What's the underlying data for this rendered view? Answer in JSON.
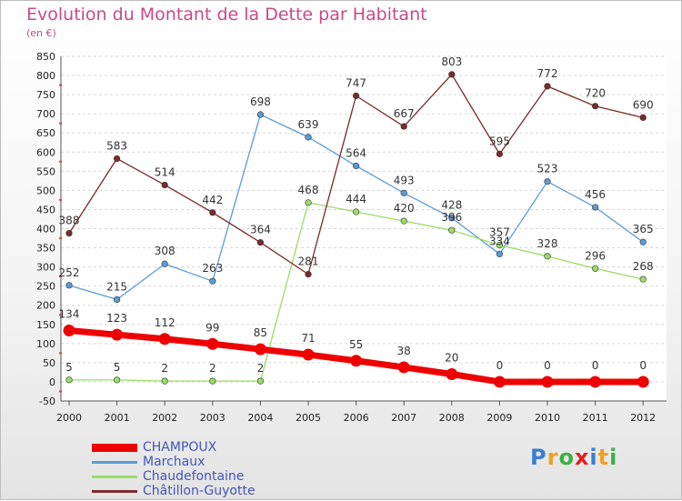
{
  "title": "Evolution du Montant de la Dette par Habitant",
  "subtitle": "(en €)",
  "logo": {
    "letters": [
      "P",
      "r",
      "o",
      "x",
      "i",
      "t",
      "i"
    ],
    "colors": [
      "#3a7fd0",
      "#f0a020",
      "#3cb043",
      "#e02020",
      "#3a7fd0",
      "#f0a020",
      "#3cb043"
    ]
  },
  "chart_data": {
    "type": "line",
    "title": "Evolution du Montant de la Dette par Habitant",
    "ylabel": "(en €)",
    "x": [
      "2000",
      "2001",
      "2002",
      "2003",
      "2004",
      "2005",
      "2006",
      "2007",
      "2008",
      "2009",
      "2010",
      "2011",
      "2012"
    ],
    "ylim": [
      -50,
      850
    ],
    "yticks": [
      -50,
      0,
      50,
      100,
      150,
      200,
      250,
      300,
      350,
      400,
      450,
      500,
      550,
      600,
      650,
      700,
      750,
      800,
      850
    ],
    "grid": "horizontal dashed",
    "legend_position": "bottom-left",
    "series": [
      {
        "name": "CHAMPOUX",
        "color": "#ee0000",
        "width": 7,
        "values": [
          134,
          123,
          112,
          99,
          85,
          71,
          55,
          38,
          20,
          0,
          0,
          0,
          0
        ],
        "labels": [
          "134",
          "123",
          "112",
          "99",
          "85",
          "71",
          "55",
          "38",
          "20",
          "0",
          "0",
          "0",
          "0"
        ]
      },
      {
        "name": "Marchaux",
        "color": "#5b9bd5",
        "width": 1.3,
        "values": [
          252,
          215,
          308,
          263,
          698,
          639,
          564,
          493,
          428,
          334,
          523,
          456,
          365
        ],
        "labels": [
          "252",
          "215",
          "308",
          "263",
          "698",
          "639",
          "564",
          "493",
          "428",
          "334",
          "523",
          "456",
          "365"
        ]
      },
      {
        "name": "Chaudefontaine",
        "color": "#99dd66",
        "width": 1.3,
        "values": [
          5,
          5,
          2,
          2,
          2,
          468,
          444,
          420,
          396,
          357,
          328,
          296,
          268
        ],
        "labels": [
          "5",
          "5",
          "2",
          "2",
          "2",
          "468",
          "444",
          "420",
          "396",
          "357",
          "328",
          "296",
          "268"
        ]
      },
      {
        "name": "Châtillon-Guyotte",
        "color": "#7a2a2a",
        "width": 1.3,
        "values": [
          388,
          583,
          514,
          442,
          364,
          281,
          747,
          667,
          803,
          595,
          772,
          720,
          690
        ],
        "labels": [
          "388",
          "583",
          "514",
          "442",
          "364",
          "281",
          "747",
          "667",
          "803",
          "595",
          "772",
          "720",
          "690"
        ]
      }
    ]
  }
}
